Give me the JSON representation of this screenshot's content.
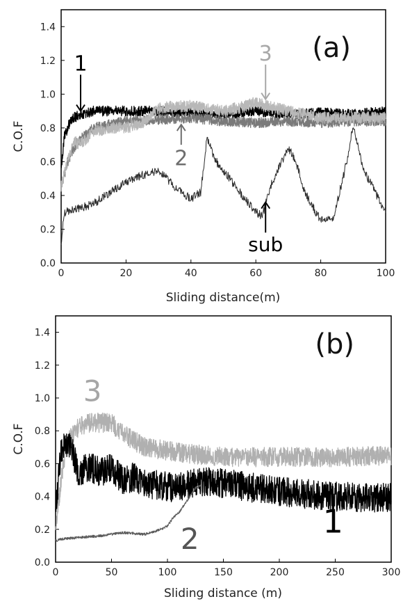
{
  "chart_data": [
    {
      "type": "line",
      "panel_label": "(a)",
      "xlabel": "Sliding distance(m)",
      "ylabel": "C.O.F",
      "xlim": [
        0,
        100
      ],
      "ylim": [
        0,
        1.5
      ],
      "xticks": [
        0,
        20,
        40,
        60,
        80,
        100
      ],
      "yticks": [
        "0.0",
        "0.2",
        "0.4",
        "0.6",
        "0.8",
        "1.0",
        "1.2",
        "1.4"
      ],
      "series": [
        {
          "name": "1",
          "color": "#000000",
          "noise": 0.03,
          "points": [
            [
              0,
              0.55
            ],
            [
              1,
              0.75
            ],
            [
              3,
              0.85
            ],
            [
              6,
              0.88
            ],
            [
              10,
              0.9
            ],
            [
              20,
              0.9
            ],
            [
              30,
              0.9
            ],
            [
              40,
              0.89
            ],
            [
              50,
              0.88
            ],
            [
              60,
              0.9
            ],
            [
              70,
              0.88
            ],
            [
              80,
              0.89
            ],
            [
              90,
              0.88
            ],
            [
              100,
              0.9
            ]
          ]
        },
        {
          "name": "2",
          "color": "#7a7a7a",
          "noise": 0.03,
          "points": [
            [
              0,
              0.45
            ],
            [
              2,
              0.6
            ],
            [
              5,
              0.72
            ],
            [
              10,
              0.8
            ],
            [
              20,
              0.84
            ],
            [
              30,
              0.85
            ],
            [
              40,
              0.86
            ],
            [
              50,
              0.84
            ],
            [
              60,
              0.83
            ],
            [
              70,
              0.84
            ],
            [
              80,
              0.83
            ],
            [
              90,
              0.84
            ],
            [
              100,
              0.84
            ]
          ]
        },
        {
          "name": "3",
          "color": "#b8b8b8",
          "noise": 0.035,
          "points": [
            [
              0,
              0.45
            ],
            [
              2,
              0.6
            ],
            [
              4,
              0.72
            ],
            [
              6,
              0.7
            ],
            [
              10,
              0.78
            ],
            [
              15,
              0.8
            ],
            [
              20,
              0.8
            ],
            [
              25,
              0.83
            ],
            [
              30,
              0.92
            ],
            [
              40,
              0.93
            ],
            [
              50,
              0.9
            ],
            [
              55,
              0.92
            ],
            [
              60,
              0.95
            ],
            [
              65,
              0.92
            ],
            [
              70,
              0.9
            ],
            [
              80,
              0.86
            ],
            [
              90,
              0.86
            ],
            [
              100,
              0.86
            ]
          ]
        },
        {
          "name": "sub",
          "color": "#2a2a2a",
          "noise": 0.025,
          "thin": true,
          "points": [
            [
              0,
              0.12
            ],
            [
              1,
              0.3
            ],
            [
              5,
              0.32
            ],
            [
              10,
              0.35
            ],
            [
              15,
              0.42
            ],
            [
              20,
              0.48
            ],
            [
              25,
              0.52
            ],
            [
              30,
              0.55
            ],
            [
              35,
              0.45
            ],
            [
              40,
              0.38
            ],
            [
              43,
              0.42
            ],
            [
              45,
              0.75
            ],
            [
              47,
              0.62
            ],
            [
              50,
              0.55
            ],
            [
              55,
              0.42
            ],
            [
              60,
              0.3
            ],
            [
              62,
              0.28
            ],
            [
              65,
              0.48
            ],
            [
              70,
              0.68
            ],
            [
              72,
              0.62
            ],
            [
              75,
              0.42
            ],
            [
              80,
              0.25
            ],
            [
              84,
              0.27
            ],
            [
              88,
              0.6
            ],
            [
              90,
              0.82
            ],
            [
              93,
              0.55
            ],
            [
              96,
              0.45
            ],
            [
              100,
              0.3
            ]
          ]
        }
      ],
      "annotations": [
        {
          "text": "1",
          "color": "#000000",
          "x": 6,
          "y": 1.14,
          "arrow_to": 0.9
        },
        {
          "text": "3",
          "color": "#a8a8a8",
          "x": 63,
          "y": 1.2,
          "arrow_to": 0.97
        },
        {
          "text": "2",
          "color": "#6e6e6e",
          "x": 37,
          "y": 0.58,
          "arrow_from": 0.7,
          "arrow_to": 0.82
        },
        {
          "text": "sub",
          "color": "#000000",
          "x": 63,
          "y": 0.07,
          "arrow_from": 0.18,
          "arrow_to": 0.36
        }
      ]
    },
    {
      "type": "line",
      "panel_label": "(b)",
      "xlabel": "Sliding distance (m)",
      "ylabel": "C.O.F",
      "xlim": [
        0,
        300
      ],
      "ylim": [
        0,
        1.5
      ],
      "xticks": [
        0,
        50,
        100,
        150,
        200,
        250,
        300
      ],
      "yticks": [
        "0.0",
        "0.2",
        "0.4",
        "0.6",
        "0.8",
        "1.0",
        "1.2",
        "1.4"
      ],
      "series": [
        {
          "name": "3",
          "color": "#b0b0b0",
          "noise": 0.06,
          "points": [
            [
              0,
              0.2
            ],
            [
              5,
              0.5
            ],
            [
              10,
              0.72
            ],
            [
              20,
              0.82
            ],
            [
              30,
              0.85
            ],
            [
              40,
              0.85
            ],
            [
              50,
              0.85
            ],
            [
              60,
              0.78
            ],
            [
              80,
              0.7
            ],
            [
              100,
              0.68
            ],
            [
              120,
              0.66
            ],
            [
              150,
              0.64
            ],
            [
              200,
              0.64
            ],
            [
              250,
              0.64
            ],
            [
              300,
              0.65
            ]
          ]
        },
        {
          "name": "1",
          "color": "#000000",
          "noise": 0.09,
          "points": [
            [
              0,
              0.3
            ],
            [
              5,
              0.7
            ],
            [
              10,
              0.72
            ],
            [
              15,
              0.68
            ],
            [
              20,
              0.55
            ],
            [
              30,
              0.58
            ],
            [
              40,
              0.55
            ],
            [
              50,
              0.58
            ],
            [
              60,
              0.5
            ],
            [
              70,
              0.52
            ],
            [
              80,
              0.48
            ],
            [
              100,
              0.46
            ],
            [
              110,
              0.45
            ],
            [
              120,
              0.48
            ],
            [
              140,
              0.49
            ],
            [
              160,
              0.47
            ],
            [
              200,
              0.43
            ],
            [
              250,
              0.4
            ],
            [
              300,
              0.39
            ]
          ]
        },
        {
          "name": "2",
          "color": "#5a5a5a",
          "noise": 0.008,
          "thin": true,
          "points": [
            [
              0,
              0.13
            ],
            [
              5,
              0.14
            ],
            [
              20,
              0.15
            ],
            [
              40,
              0.16
            ],
            [
              60,
              0.18
            ],
            [
              80,
              0.17
            ],
            [
              90,
              0.19
            ],
            [
              100,
              0.22
            ],
            [
              105,
              0.27
            ],
            [
              110,
              0.3
            ],
            [
              118,
              0.38
            ],
            [
              125,
              0.45
            ],
            [
              130,
              0.47
            ]
          ]
        }
      ],
      "annotations": [
        {
          "text": "3",
          "color": "#a6a6a6",
          "x": 33,
          "y": 0.98
        },
        {
          "text": "1",
          "color": "#000000",
          "x": 248,
          "y": 0.18
        },
        {
          "text": "2",
          "color": "#555555",
          "x": 120,
          "y": 0.08
        }
      ]
    }
  ]
}
